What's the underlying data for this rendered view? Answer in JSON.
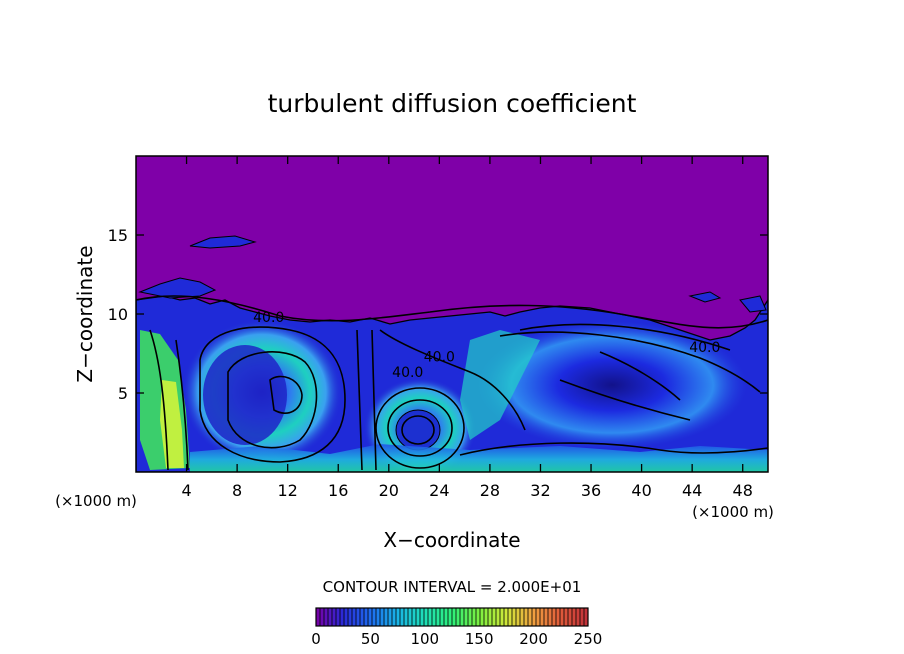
{
  "chart_data": {
    "type": "heatmap",
    "title": "turbulent diffusion coefficient",
    "xlabel": "X−coordinate",
    "ylabel": "Z−coordinate",
    "x_unit_left": "(×1000 m)",
    "x_unit_right": "(×1000 m)",
    "xlim": [
      0,
      50
    ],
    "ylim": [
      0,
      20
    ],
    "x_ticks": [
      4,
      8,
      12,
      16,
      20,
      24,
      28,
      32,
      36,
      40,
      44,
      48
    ],
    "x_tick_labels": [
      "4",
      "8",
      "12",
      "16",
      "20",
      "24",
      "28",
      "32",
      "36",
      "40",
      "44",
      "48"
    ],
    "y_ticks": [
      5,
      10,
      15
    ],
    "y_tick_labels": [
      "5",
      "10",
      "15"
    ],
    "contour_interval_label": "CONTOUR INTERVAL = 2.000E+01",
    "contour_interval": 20,
    "contour_labels": [
      {
        "text": "40.0",
        "x": 10.5,
        "z": 9.5
      },
      {
        "text": "40.0",
        "x": 24.0,
        "z": 7.0
      },
      {
        "text": "40.0",
        "x": 45.0,
        "z": 7.6
      },
      {
        "text": "40.0",
        "x": 21.5,
        "z": 6.0
      }
    ],
    "colorbar": {
      "min": 0,
      "max": 250,
      "ticks": [
        0,
        50,
        100,
        150,
        200,
        250
      ],
      "tick_labels": [
        "0",
        "50",
        "100",
        "150",
        "200",
        "250"
      ],
      "colors": [
        "#7a00a6",
        "#2a2ad8",
        "#1e6cf0",
        "#19b4e6",
        "#1fe0b8",
        "#2ef07a",
        "#7cf040",
        "#d0e83a",
        "#f0a040",
        "#e05a3a",
        "#c0303a"
      ]
    },
    "colors": {
      "upper_layer": "#7f00a8",
      "boundary_layer": "#1818d8",
      "eddies": "#1ea8f0",
      "strong_mixing": "#24e890",
      "peak_mixing": "#b8f030",
      "contour_line": "#000000"
    }
  }
}
